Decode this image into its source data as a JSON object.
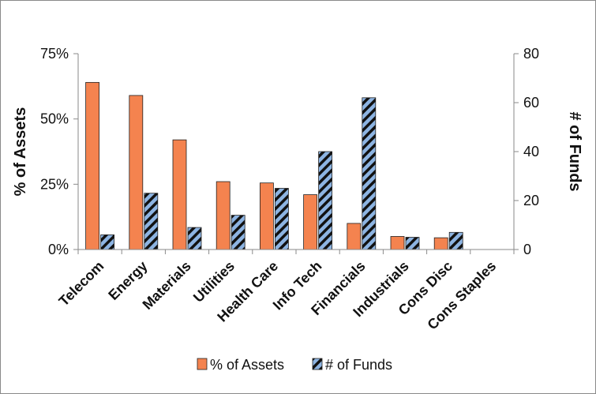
{
  "chart_data": {
    "type": "bar",
    "categories": [
      "Telecom",
      "Energy",
      "Materials",
      "Utilities",
      "Health Care",
      "Info Tech",
      "Financials",
      "Industrials",
      "Cons Disc",
      "Cons Staples"
    ],
    "series": [
      {
        "name": "% of Assets",
        "axis": "left",
        "values": [
          64,
          59,
          42,
          26,
          25.5,
          21,
          10,
          5,
          4.5,
          0
        ],
        "color": "#f4834f",
        "pattern": "solid"
      },
      {
        "name": "# of Funds",
        "axis": "right",
        "values": [
          6,
          23,
          9,
          14,
          25,
          40,
          62,
          5,
          7,
          0
        ],
        "color": "#8db4e2",
        "pattern": "black diagonal stripes"
      }
    ],
    "y_left": {
      "label": "% of Assets",
      "ylim": [
        0,
        75
      ],
      "ticks": [
        0,
        25,
        50,
        75
      ],
      "tick_labels": [
        "0%",
        "25%",
        "50%",
        "75%"
      ]
    },
    "y_right": {
      "label": "# of Funds",
      "ylim": [
        0,
        80
      ],
      "ticks": [
        0,
        20,
        40,
        60,
        80
      ],
      "tick_labels": [
        "0",
        "20",
        "40",
        "60",
        "80"
      ]
    },
    "title": "",
    "xlabel": "",
    "grid": false,
    "legend_position": "bottom"
  }
}
